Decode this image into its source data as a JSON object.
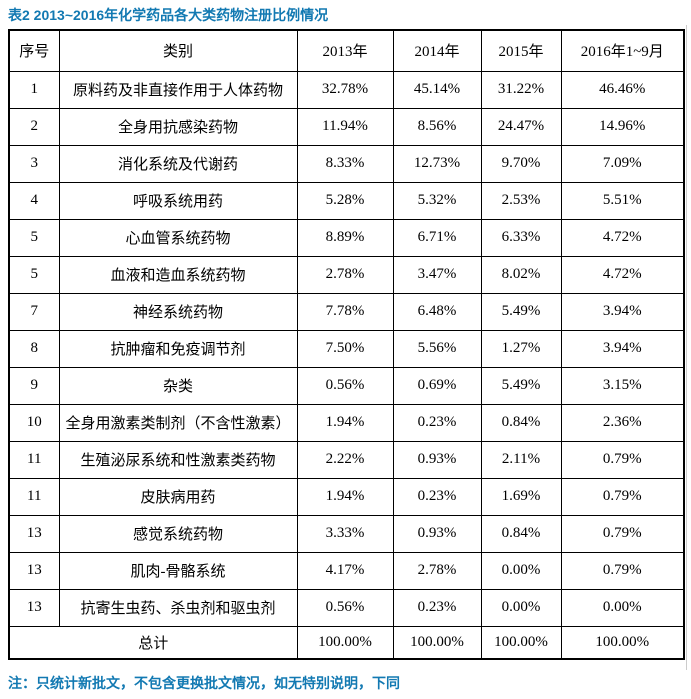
{
  "page": {
    "title": "表2 2013~2016年化学药品各大类药物注册比例情况",
    "note": "注：只统计新批文，不包含更换批文情况，如无特别说明，下同",
    "accent_color": "#1279b2"
  },
  "table": {
    "headers": [
      "序号",
      "类别",
      "2013年",
      "2014年",
      "2015年",
      "2016年1~9月"
    ],
    "rows": [
      {
        "no": "1",
        "category": "原料药及非直接作用于人体药物",
        "values": [
          "32.78%",
          "45.14%",
          "31.22%",
          "46.46%"
        ]
      },
      {
        "no": "2",
        "category": "全身用抗感染药物",
        "values": [
          "11.94%",
          "8.56%",
          "24.47%",
          "14.96%"
        ]
      },
      {
        "no": "3",
        "category": "消化系统及代谢药",
        "values": [
          "8.33%",
          "12.73%",
          "9.70%",
          "7.09%"
        ]
      },
      {
        "no": "4",
        "category": "呼吸系统用药",
        "values": [
          "5.28%",
          "5.32%",
          "2.53%",
          "5.51%"
        ]
      },
      {
        "no": "5",
        "category": "心血管系统药物",
        "values": [
          "8.89%",
          "6.71%",
          "6.33%",
          "4.72%"
        ]
      },
      {
        "no": "5",
        "category": "血液和造血系统药物",
        "values": [
          "2.78%",
          "3.47%",
          "8.02%",
          "4.72%"
        ]
      },
      {
        "no": "7",
        "category": "神经系统药物",
        "values": [
          "7.78%",
          "6.48%",
          "5.49%",
          "3.94%"
        ]
      },
      {
        "no": "8",
        "category": "抗肿瘤和免疫调节剂",
        "values": [
          "7.50%",
          "5.56%",
          "1.27%",
          "3.94%"
        ]
      },
      {
        "no": "9",
        "category": "杂类",
        "values": [
          "0.56%",
          "0.69%",
          "5.49%",
          "3.15%"
        ]
      },
      {
        "no": "10",
        "category": "全身用激素类制剂（不含性激素）",
        "values": [
          "1.94%",
          "0.23%",
          "0.84%",
          "2.36%"
        ]
      },
      {
        "no": "11",
        "category": "生殖泌尿系统和性激素类药物",
        "values": [
          "2.22%",
          "0.93%",
          "2.11%",
          "0.79%"
        ]
      },
      {
        "no": "11",
        "category": "皮肤病用药",
        "values": [
          "1.94%",
          "0.23%",
          "1.69%",
          "0.79%"
        ]
      },
      {
        "no": "13",
        "category": "感觉系统药物",
        "values": [
          "3.33%",
          "0.93%",
          "0.84%",
          "0.79%"
        ]
      },
      {
        "no": "13",
        "category": "肌肉-骨骼系统",
        "values": [
          "4.17%",
          "2.78%",
          "0.00%",
          "0.79%"
        ]
      },
      {
        "no": "13",
        "category": "抗寄生虫药、杀虫剂和驱虫剂",
        "values": [
          "0.56%",
          "0.23%",
          "0.00%",
          "0.00%"
        ]
      }
    ],
    "total": {
      "label": "总计",
      "values": [
        "100.00%",
        "100.00%",
        "100.00%",
        "100.00%"
      ]
    }
  }
}
